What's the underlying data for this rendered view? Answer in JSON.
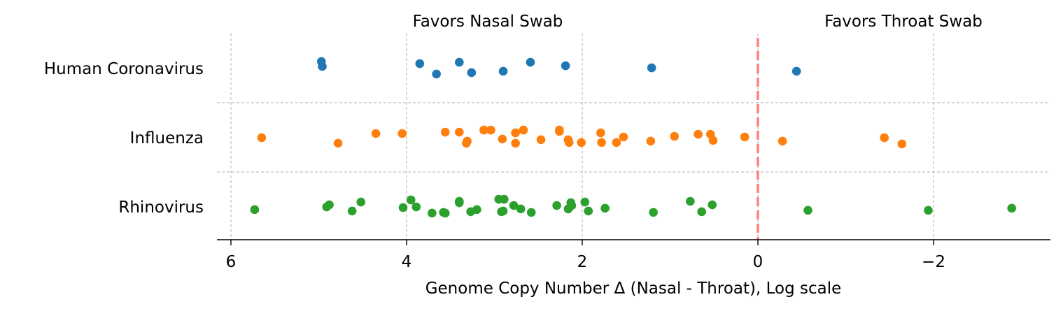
{
  "chart_data": {
    "type": "scatter",
    "title": "",
    "xlabel": "Genome Copy Number Δ (Nasal - Throat), Log scale",
    "ylabel": "",
    "xlim": [
      6.15,
      -3.35
    ],
    "x_inverted": true,
    "x_ticks": [
      6,
      4,
      2,
      0,
      -2
    ],
    "x_tick_labels": [
      "6",
      "4",
      "2",
      "0",
      "−2"
    ],
    "grid": "dashed gray",
    "reference_line": {
      "x": 0,
      "color": "#ff7f7f",
      "style": "dashed"
    },
    "region_labels": {
      "left": "Favors Nasal Swab",
      "right": "Favors Throat Swab"
    },
    "categories": [
      "Human Coronavirus",
      "Influenza",
      "Rhinovirus"
    ],
    "series": [
      {
        "category": "Human Coronavirus",
        "color": "#1f77b4",
        "points": [
          {
            "x": 4.97,
            "j": -0.1
          },
          {
            "x": 4.96,
            "j": -0.03
          },
          {
            "x": 3.85,
            "j": -0.07
          },
          {
            "x": 3.66,
            "j": 0.08
          },
          {
            "x": 3.4,
            "j": -0.09
          },
          {
            "x": 3.26,
            "j": 0.06
          },
          {
            "x": 2.9,
            "j": 0.04
          },
          {
            "x": 2.59,
            "j": -0.09
          },
          {
            "x": 2.19,
            "j": -0.04
          },
          {
            "x": 1.21,
            "j": -0.01
          },
          {
            "x": -0.44,
            "j": 0.04
          }
        ]
      },
      {
        "category": "Influenza",
        "color": "#ff7f0e",
        "points": [
          {
            "x": 5.65,
            "j": 0.0
          },
          {
            "x": 4.78,
            "j": 0.08
          },
          {
            "x": 4.35,
            "j": -0.06
          },
          {
            "x": 4.05,
            "j": -0.06
          },
          {
            "x": 3.56,
            "j": -0.08
          },
          {
            "x": 3.4,
            "j": -0.08
          },
          {
            "x": 3.31,
            "j": 0.05
          },
          {
            "x": 3.32,
            "j": 0.08
          },
          {
            "x": 3.12,
            "j": -0.11
          },
          {
            "x": 3.04,
            "j": -0.11
          },
          {
            "x": 2.91,
            "j": 0.02
          },
          {
            "x": 2.76,
            "j": -0.07
          },
          {
            "x": 2.76,
            "j": 0.08
          },
          {
            "x": 2.67,
            "j": -0.11
          },
          {
            "x": 2.47,
            "j": 0.03
          },
          {
            "x": 2.26,
            "j": -0.11
          },
          {
            "x": 2.26,
            "j": -0.09
          },
          {
            "x": 2.16,
            "j": 0.03
          },
          {
            "x": 2.15,
            "j": 0.07
          },
          {
            "x": 2.01,
            "j": 0.07
          },
          {
            "x": 1.79,
            "j": -0.07
          },
          {
            "x": 1.78,
            "j": 0.07
          },
          {
            "x": 1.61,
            "j": 0.07
          },
          {
            "x": 1.53,
            "j": -0.01
          },
          {
            "x": 1.22,
            "j": 0.05
          },
          {
            "x": 0.95,
            "j": -0.02
          },
          {
            "x": 0.68,
            "j": -0.05
          },
          {
            "x": 0.54,
            "j": -0.05
          },
          {
            "x": 0.51,
            "j": 0.04
          },
          {
            "x": 0.15,
            "j": -0.01
          },
          {
            "x": -0.28,
            "j": 0.05
          },
          {
            "x": -1.44,
            "j": 0.0
          },
          {
            "x": -1.64,
            "j": 0.09
          }
        ]
      },
      {
        "category": "Rhinovirus",
        "color": "#2ca02c",
        "points": [
          {
            "x": 5.73,
            "j": 0.04
          },
          {
            "x": 4.91,
            "j": 0.0
          },
          {
            "x": 4.88,
            "j": -0.03
          },
          {
            "x": 4.62,
            "j": 0.06
          },
          {
            "x": 4.52,
            "j": -0.07
          },
          {
            "x": 4.04,
            "j": 0.01
          },
          {
            "x": 3.95,
            "j": -0.1
          },
          {
            "x": 3.89,
            "j": 0.0
          },
          {
            "x": 3.71,
            "j": 0.09
          },
          {
            "x": 3.58,
            "j": 0.08
          },
          {
            "x": 3.56,
            "j": 0.09
          },
          {
            "x": 3.4,
            "j": -0.08
          },
          {
            "x": 3.4,
            "j": -0.06
          },
          {
            "x": 3.27,
            "j": 0.07
          },
          {
            "x": 3.2,
            "j": 0.04
          },
          {
            "x": 2.95,
            "j": -0.11
          },
          {
            "x": 2.89,
            "j": -0.11
          },
          {
            "x": 2.92,
            "j": 0.07
          },
          {
            "x": 2.9,
            "j": 0.06
          },
          {
            "x": 2.78,
            "j": -0.02
          },
          {
            "x": 2.7,
            "j": 0.03
          },
          {
            "x": 2.58,
            "j": 0.08
          },
          {
            "x": 2.29,
            "j": -0.02
          },
          {
            "x": 2.16,
            "j": 0.03
          },
          {
            "x": 2.13,
            "j": -0.06
          },
          {
            "x": 2.12,
            "j": -0.02
          },
          {
            "x": 1.97,
            "j": -0.07
          },
          {
            "x": 1.93,
            "j": 0.06
          },
          {
            "x": 1.74,
            "j": 0.02
          },
          {
            "x": 1.19,
            "j": 0.08
          },
          {
            "x": 0.77,
            "j": -0.08
          },
          {
            "x": 0.64,
            "j": 0.07
          },
          {
            "x": 0.52,
            "j": -0.03
          },
          {
            "x": -0.57,
            "j": 0.05
          },
          {
            "x": -1.94,
            "j": 0.05
          },
          {
            "x": -2.89,
            "j": 0.02
          }
        ]
      }
    ]
  }
}
